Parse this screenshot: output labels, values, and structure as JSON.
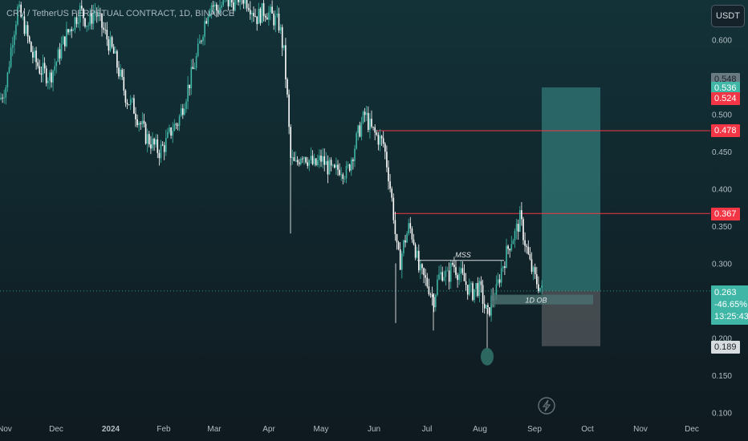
{
  "header": {
    "title": "CRV / TetherUS PERPETUAL CONTRACT, 1D, BINANCE",
    "currency_button": "USDT"
  },
  "colors": {
    "background_top": "#123238",
    "background_bottom": "#0f1a20",
    "candle_up": "#3fb6a6",
    "candle_down": "#ffffff",
    "level_line": "#f23645",
    "profit_zone": "#2c6b6b",
    "loss_zone": "#4c5257",
    "axis_text": "#b2bcc4"
  },
  "price_tags": {
    "level_high": "0.548",
    "target": "0.536",
    "zone_top": "0.524",
    "resistance_1": "0.478",
    "resistance_2": "0.367",
    "current_price": "0.263",
    "change": "-46.65%",
    "countdown": "13:25:43",
    "stop": "0.189"
  },
  "annotations": {
    "mss": "MSS",
    "order_block": "1D OB"
  },
  "lightning_icon": "lightning-icon",
  "chart_data": {
    "type": "candlestick",
    "title": "CRV / TetherUS PERPETUAL CONTRACT, 1D, BINANCE",
    "y_ticks": [
      0.6,
      0.55,
      0.5,
      0.45,
      0.4,
      0.35,
      0.3,
      0.25,
      0.2,
      0.15,
      0.1
    ],
    "y_tick_labels": [
      "0.600",
      "",
      "0.500",
      "0.450",
      "0.400",
      "0.350",
      "0.300",
      "",
      "0.200",
      "0.150",
      "0.100"
    ],
    "x_ticks": [
      "Nov",
      "Dec",
      "2024",
      "Feb",
      "Mar",
      "Apr",
      "May",
      "Jun",
      "Jul",
      "Aug",
      "Sep",
      "Oct",
      "Nov",
      "Dec"
    ],
    "ylim": [
      0.1,
      0.63
    ],
    "horizontal_levels": [
      0.478,
      0.367
    ],
    "mss_level": 0.304,
    "order_block": [
      0.245,
      0.258
    ],
    "current_price": 0.263,
    "long_position": {
      "entry": 0.263,
      "target": 0.536,
      "stop": 0.189
    },
    "price_path": [
      [
        0,
        0.52
      ],
      [
        8,
        0.54
      ],
      [
        15,
        0.6
      ],
      [
        22,
        0.64
      ],
      [
        30,
        0.62
      ],
      [
        40,
        0.58
      ],
      [
        50,
        0.56
      ],
      [
        62,
        0.55
      ],
      [
        70,
        0.57
      ],
      [
        80,
        0.6
      ],
      [
        90,
        0.62
      ],
      [
        100,
        0.64
      ],
      [
        110,
        0.62
      ],
      [
        118,
        0.64
      ],
      [
        126,
        0.62
      ],
      [
        134,
        0.6
      ],
      [
        142,
        0.58
      ],
      [
        150,
        0.55
      ],
      [
        158,
        0.52
      ],
      [
        166,
        0.51
      ],
      [
        174,
        0.49
      ],
      [
        182,
        0.47
      ],
      [
        190,
        0.46
      ],
      [
        198,
        0.45
      ],
      [
        206,
        0.46
      ],
      [
        214,
        0.48
      ],
      [
        222,
        0.49
      ],
      [
        230,
        0.52
      ],
      [
        238,
        0.55
      ],
      [
        246,
        0.58
      ],
      [
        254,
        0.62
      ],
      [
        262,
        0.65
      ],
      [
        270,
        0.64
      ],
      [
        280,
        0.65
      ],
      [
        290,
        0.65
      ],
      [
        300,
        0.66
      ],
      [
        310,
        0.65
      ],
      [
        320,
        0.63
      ],
      [
        330,
        0.64
      ],
      [
        340,
        0.63
      ],
      [
        348,
        0.62
      ],
      [
        354,
        0.58
      ],
      [
        358,
        0.52
      ],
      [
        362,
        0.44
      ],
      [
        368,
        0.43
      ],
      [
        376,
        0.45
      ],
      [
        384,
        0.44
      ],
      [
        392,
        0.43
      ],
      [
        400,
        0.44
      ],
      [
        408,
        0.43
      ],
      [
        416,
        0.42
      ],
      [
        424,
        0.43
      ],
      [
        432,
        0.42
      ],
      [
        440,
        0.45
      ],
      [
        448,
        0.48
      ],
      [
        455,
        0.5
      ],
      [
        462,
        0.48
      ],
      [
        470,
        0.47
      ],
      [
        478,
        0.46
      ],
      [
        484,
        0.42
      ],
      [
        490,
        0.37
      ],
      [
        494,
        0.32
      ],
      [
        498,
        0.3
      ],
      [
        504,
        0.33
      ],
      [
        510,
        0.35
      ],
      [
        516,
        0.33
      ],
      [
        522,
        0.29
      ],
      [
        528,
        0.28
      ],
      [
        534,
        0.27
      ],
      [
        540,
        0.25
      ],
      [
        546,
        0.28
      ],
      [
        552,
        0.29
      ],
      [
        558,
        0.28
      ],
      [
        564,
        0.3
      ],
      [
        570,
        0.29
      ],
      [
        576,
        0.28
      ],
      [
        582,
        0.27
      ],
      [
        588,
        0.26
      ],
      [
        594,
        0.27
      ],
      [
        600,
        0.26
      ],
      [
        604,
        0.24
      ],
      [
        608,
        0.23
      ],
      [
        612,
        0.25
      ],
      [
        618,
        0.26
      ],
      [
        624,
        0.29
      ],
      [
        630,
        0.31
      ],
      [
        636,
        0.33
      ],
      [
        642,
        0.34
      ],
      [
        648,
        0.36
      ],
      [
        654,
        0.33
      ],
      [
        660,
        0.3
      ],
      [
        666,
        0.28
      ],
      [
        672,
        0.27
      ],
      [
        676,
        0.26
      ]
    ]
  }
}
